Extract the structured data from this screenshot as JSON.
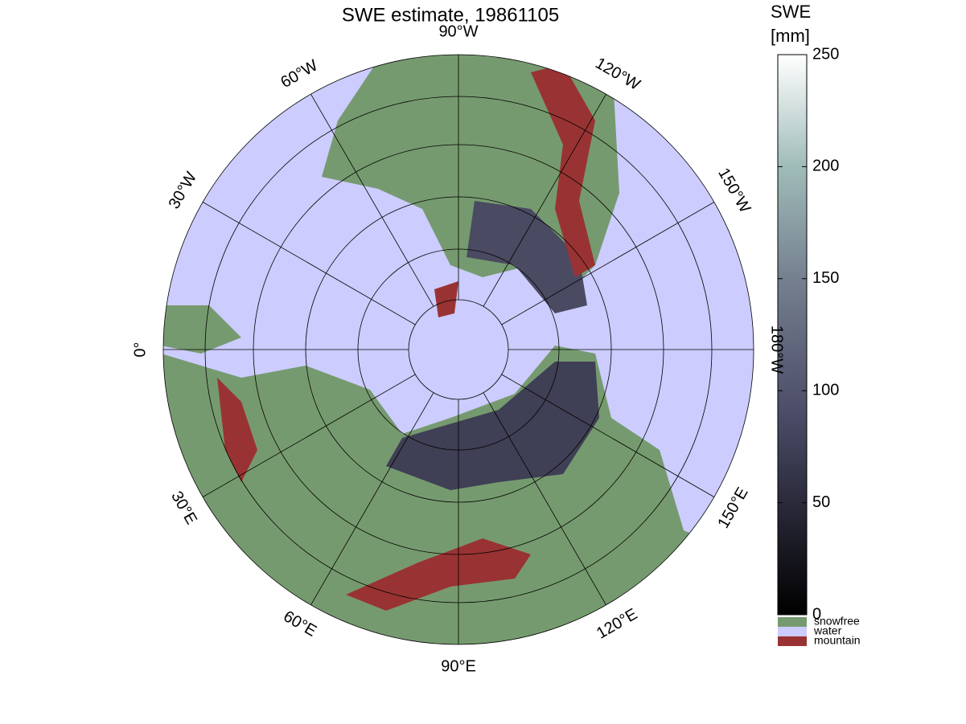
{
  "title": "SWE estimate, 19861105",
  "meridian_labels": [
    "0°",
    "30°W",
    "60°W",
    "90°W",
    "120°W",
    "150°W",
    "180°W",
    "150°E",
    "120°E",
    "90°E",
    "60°E",
    "30°E"
  ],
  "colorbar": {
    "title": [
      "SWE",
      "[mm]"
    ],
    "clim": [
      0,
      250
    ],
    "ticks": [
      0,
      50,
      100,
      150,
      200,
      250
    ],
    "legend": [
      {
        "name": "snowfree",
        "color": "#769a6f"
      },
      {
        "name": "water",
        "color": "#ccccff"
      },
      {
        "name": "mountain",
        "color": "#993333"
      }
    ]
  }
}
